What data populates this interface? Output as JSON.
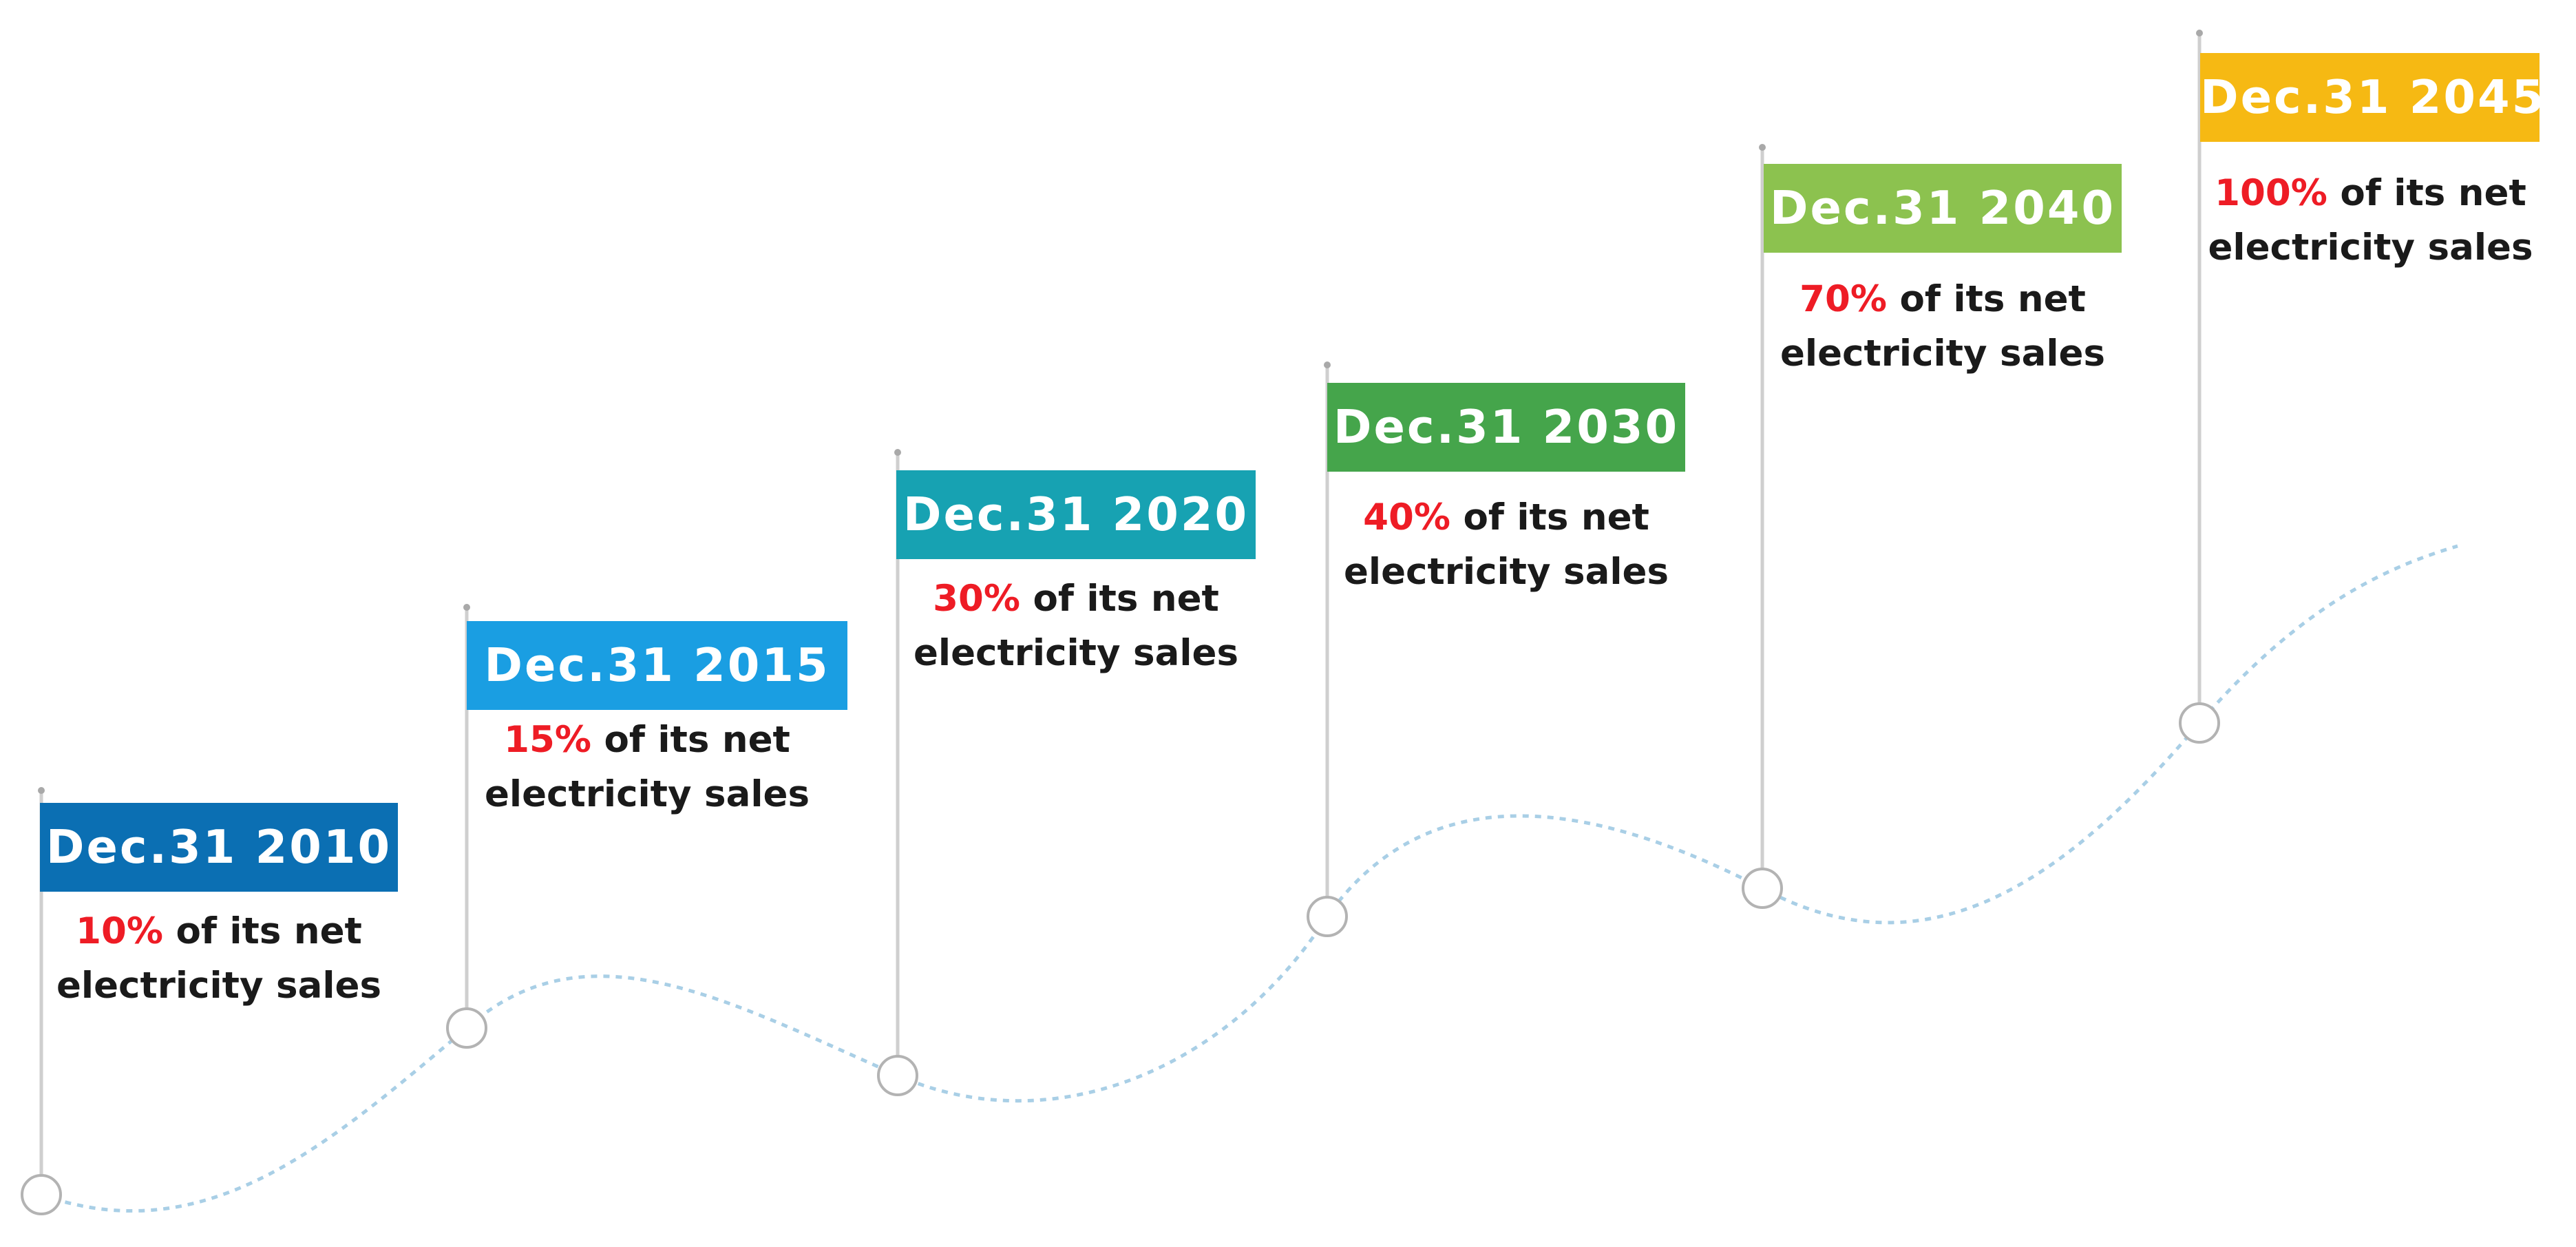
{
  "milestones": [
    {
      "date": "Dec.31 2010",
      "percent": "10%",
      "rest": "of its net",
      "line2": "electricity sales",
      "color": "#0b6fb3"
    },
    {
      "date": "Dec.31 2015",
      "percent": "15%",
      "rest": "of its net",
      "line2": "electricity sales",
      "color": "#1a9ee2"
    },
    {
      "date": "Dec.31 2020",
      "percent": "30%",
      "rest": "of its net",
      "line2": "electricity sales",
      "color": "#17a2b2"
    },
    {
      "date": "Dec.31 2030",
      "percent": "40%",
      "rest": "of its net",
      "line2": "electricity sales",
      "color": "#45a54b"
    },
    {
      "date": "Dec.31 2040",
      "percent": "70%",
      "rest": "of its net",
      "line2": "electricity sales",
      "color": "#8cc24f"
    },
    {
      "date": "Dec.31 2045",
      "percent": "100%",
      "rest": "of its net",
      "line2": "electricity sales",
      "color": "#f6b913"
    }
  ]
}
